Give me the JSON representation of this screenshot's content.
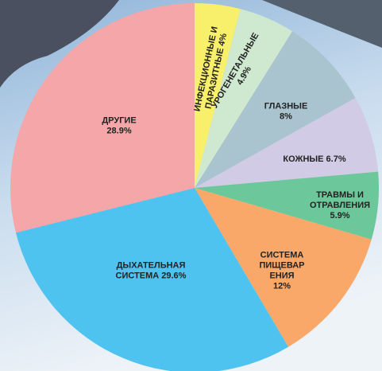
{
  "chart_data": {
    "type": "pie",
    "categories": [
      [
        "ИНФЕКЦИОННЫЕ И",
        "ПАРАЗИТНЫЕ"
      ],
      [
        "УРОГЕНЕТАЛЬНЫЕ"
      ],
      [
        "ГЛАЗНЫЕ"
      ],
      [
        "КОЖНЫЕ"
      ],
      [
        "ТРАВМЫ И",
        "ОТРАВЛЕНИЯ"
      ],
      [
        "СИСТЕМА",
        "ПИЩЕВАР",
        "ЕНИЯ"
      ],
      [
        "ДЫХАТЕЛЬНАЯ",
        "СИСТЕМА"
      ],
      [
        "ДРУГИЕ"
      ]
    ],
    "values": [
      4,
      4.9,
      8,
      6.7,
      5.9,
      12,
      29.6,
      28.9
    ],
    "value_labels": [
      "4%",
      "4.9%",
      "8%",
      "6.7%",
      "5.9%",
      "12%",
      "29.6%",
      "28.9%"
    ],
    "colors": [
      "#f8ef6a",
      "#cfe8d0",
      "#a9c4cf",
      "#d1cbe6",
      "#6cc79a",
      "#f9a86a",
      "#4fc3ef",
      "#f4a6a8"
    ]
  }
}
